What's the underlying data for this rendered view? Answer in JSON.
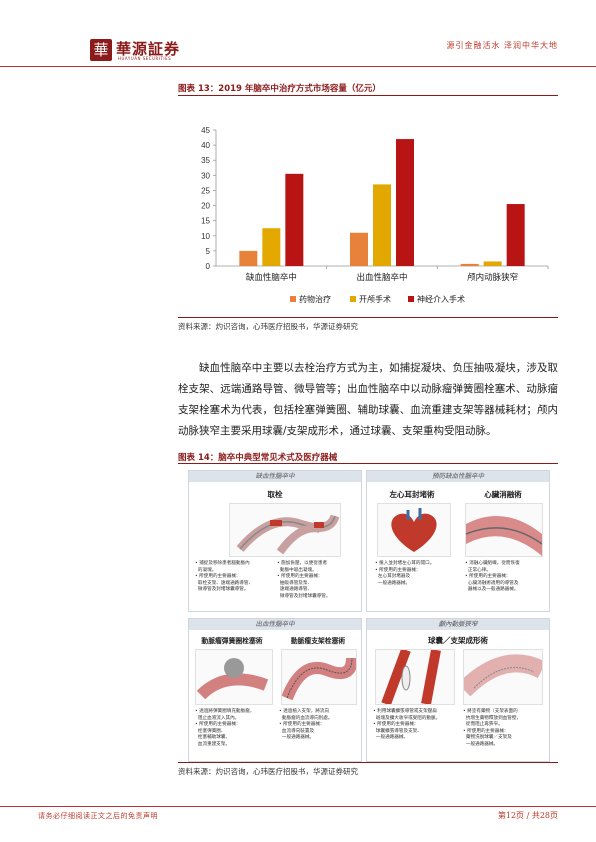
{
  "header": {
    "logo_char": "華",
    "brand": "華源証券",
    "brand_en": "HUAYUAN SECURITIES",
    "slogan": "源引金融活水 泽润中华大地"
  },
  "figure13": {
    "title": "图表 13：2019 年脑卒中治疗方式市场容量（亿元）",
    "source": "资料来源：灼识咨询，心玮医疗招股书，华源证券研究"
  },
  "chart_data": {
    "type": "bar",
    "categories": [
      "缺血性脑卒中",
      "出血性脑卒中",
      "颅内动脉狭窄"
    ],
    "series": [
      {
        "name": "药物治疗",
        "values": [
          5,
          11,
          0.7
        ]
      },
      {
        "name": "开颅手术",
        "values": [
          12.5,
          27,
          1.5
        ]
      },
      {
        "name": "神经介入手术",
        "values": [
          30.5,
          42,
          20.5
        ]
      }
    ],
    "colors": [
      "#e8823a",
      "#e2a800",
      "#b81414"
    ],
    "ylim": [
      0,
      45
    ],
    "yticks": [
      "0",
      "5",
      "10",
      "15",
      "20",
      "25",
      "30",
      "35",
      "40",
      "45"
    ],
    "legend": "bottom",
    "grid": false
  },
  "body": {
    "paragraph": "缺血性脑卒中主要以去栓治疗方式为主，如捕捉凝块、负压抽吸凝块，涉及取栓支架、远端通路导管、微导管等；出血性脑卒中以动脉瘤弹簧圈栓塞术、动脉瘤支架栓塞术为代表，包括栓塞弹簧圈、辅助球囊、血流重建支架等器械耗材；颅内动脉狭窄主要采用球囊/支架成形术，通过球囊、支架重构受阻动脉。"
  },
  "figure14": {
    "title": "图表 14：脑卒中典型常见术式及医疗器械",
    "source": "资料来源：灼识咨询，心玮医疗招股书，华源证券研究",
    "sections": {
      "ischemic": {
        "head": "缺血性腦卒中",
        "panel": "取栓",
        "notes_left": [
          "• 捕捉及移除患者腦動脈內",
          "  的凝塊。",
          "• 所使用的主要器械：",
          "  取栓支架、遠端通路導管、",
          "  微導管及封堵球囊導管。"
        ],
        "notes_right": [
          "• 施加負壓，以便從患者",
          "  動脈中吸出凝塊。",
          "• 所使用的主要器械：",
          "  抽吸導管及泵、",
          "  遠端通路導管、",
          "  微導管及封堵球囊導管。"
        ]
      },
      "prevention": {
        "head": "預防缺血性腦卒中",
        "panel_left": "左心耳封堵術",
        "panel_right": "心臟消融術",
        "notes_left": [
          "• 植入並封堵左心耳的開口。",
          "• 所使用的主要器械：",
          "  左心耳封堵器及",
          "  一般通路器械。"
        ],
        "notes_right": [
          "• 消融心臟組織，從而恢復",
          "  正常心律。",
          "• 所使用的主要器械：",
          "  心臟消融術適用的導管及",
          "  器械以及一般通路器械。"
        ]
      },
      "hemorrhagic": {
        "head": "出血性腦卒中",
        "panel_left": "動脈瘤彈簧圈栓塞術",
        "panel_right": "動脈瘤支架栓塞術",
        "notes_left": [
          "• 透過將彈簧圈填充動脈瘤，",
          "  阻止血液流入其內。",
          "• 所使用的主要器械：",
          "  栓塞彈簧圈、",
          "  栓塞輔助球囊、",
          "  血流重建支架。"
        ],
        "notes_right": [
          "• 透過植入支架，將流向",
          "  動脈瘤的血流導向別處。",
          "• 所使用的主要器械：",
          "  血流導向裝置及",
          "  一般通路器械。"
        ]
      },
      "stenosis": {
        "head": "顱內動脈狹窄",
        "panel": "球囊／支架成形術",
        "notes_left": [
          "• 利用球囊擴張導管或支架壓扁",
          "  斑塊及擴大收窄或受阻的動脈。",
          "• 所使用的主要器械：",
          "  球囊擴張導管及支架、",
          "  一般通路器械。"
        ],
        "notes_right": [
          "• 將塗有藥物（支架表面的",
          "  抗增生藥物釋放到血管壁，",
          "  從而阻止再狹窄。",
          "• 所使用的主要器械：",
          "  藥物洗脫球囊／支架及",
          "  一般通路器械。"
        ]
      }
    }
  },
  "footer": {
    "disclaimer": "请务必仔细阅读正文之后的免责声明",
    "page": "第12页 / 共28页"
  }
}
